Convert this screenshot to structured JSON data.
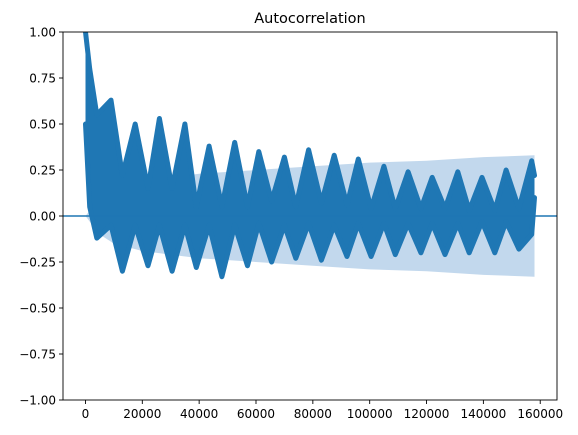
{
  "chart_data": {
    "type": "line",
    "title": "Autocorrelation",
    "xlabel": "",
    "ylabel": "",
    "xlim": [
      -7900,
      165900
    ],
    "ylim": [
      -1.0,
      1.0
    ],
    "x_ticks": [
      0,
      20000,
      40000,
      60000,
      80000,
      100000,
      120000,
      140000,
      160000
    ],
    "x_tick_labels": [
      "0",
      "20000",
      "40000",
      "60000",
      "80000",
      "100000",
      "120000",
      "140000",
      "160000"
    ],
    "y_ticks": [
      -1.0,
      -0.75,
      -0.5,
      -0.25,
      0.0,
      0.25,
      0.5,
      0.75,
      1.0
    ],
    "y_tick_labels": [
      "−1.00",
      "−0.75",
      "−0.50",
      "−0.25",
      "0.00",
      "0.25",
      "0.50",
      "0.75",
      "1.00"
    ],
    "grid": false,
    "max_lag": 158000,
    "colors": {
      "stem": "#1f77b4",
      "band": "#b7d1ea",
      "axis": "#000000"
    },
    "confidence_band": {
      "lag": [
        0,
        2000,
        5000,
        10000,
        20000,
        40000,
        60000,
        80000,
        100000,
        120000,
        140000,
        158000
      ],
      "upper": [
        0.0,
        0.04,
        0.1,
        0.15,
        0.19,
        0.23,
        0.25,
        0.27,
        0.29,
        0.3,
        0.32,
        0.33
      ],
      "lower": [
        0.0,
        -0.04,
        -0.1,
        -0.15,
        -0.19,
        -0.23,
        -0.25,
        -0.27,
        -0.29,
        -0.3,
        -0.32,
        -0.33
      ]
    },
    "envelope": {
      "lag": [
        0,
        1500,
        4000,
        9000,
        13000,
        17500,
        22000,
        26000,
        30500,
        35000,
        39000,
        43500,
        48000,
        52500,
        57000,
        61000,
        65500,
        70000,
        74000,
        78500,
        83000,
        87500,
        92000,
        96000,
        100500,
        105000,
        109000,
        113500,
        118000,
        122000,
        126500,
        131000,
        135000,
        139500,
        144000,
        148000,
        152500,
        157000,
        158000
      ],
      "upper": [
        1.0,
        0.8,
        0.55,
        0.63,
        0.22,
        0.5,
        0.15,
        0.53,
        0.15,
        0.5,
        0.05,
        0.38,
        0.05,
        0.4,
        0.05,
        0.35,
        0.08,
        0.32,
        0.05,
        0.36,
        0.07,
        0.33,
        0.06,
        0.31,
        0.04,
        0.27,
        0.04,
        0.24,
        0.04,
        0.21,
        0.04,
        0.24,
        0.03,
        0.21,
        0.03,
        0.25,
        0.04,
        0.3,
        0.22
      ],
      "lower": [
        0.5,
        0.05,
        -0.12,
        -0.05,
        -0.3,
        -0.05,
        -0.27,
        -0.05,
        -0.3,
        -0.05,
        -0.28,
        -0.05,
        -0.33,
        -0.05,
        -0.27,
        -0.04,
        -0.25,
        -0.05,
        -0.23,
        -0.04,
        -0.24,
        -0.05,
        -0.22,
        -0.04,
        -0.22,
        -0.04,
        -0.21,
        -0.04,
        -0.2,
        -0.04,
        -0.21,
        -0.04,
        -0.2,
        -0.03,
        -0.2,
        -0.03,
        -0.18,
        -0.1,
        0.1
      ]
    }
  }
}
